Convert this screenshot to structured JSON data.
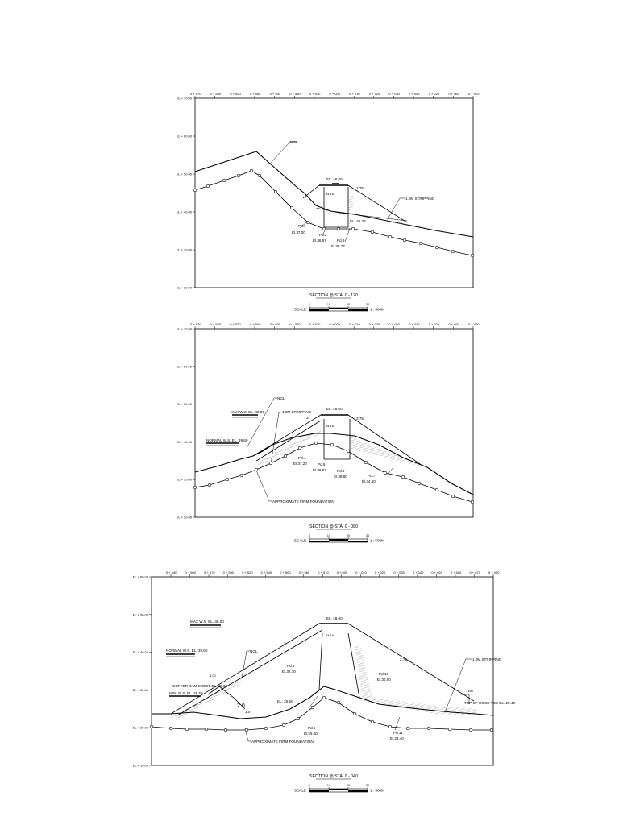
{
  "sections": [
    {
      "title": "SECTION @ STA. 0 - 120",
      "elevations": [
        "EL + 70.00",
        "EL + 60.00",
        "EL + 50.00",
        "EL + 40.00",
        "EL + 30.00",
        "EL + 20.00"
      ],
      "stations": [
        "0 + 570",
        "0 + 580",
        "0 + 520",
        "0 + 540",
        "0 + 500",
        "0 + 560",
        "0 + 510",
        "0 + 000",
        "0 + 010",
        "0 + 020",
        "0 + 030",
        "0 + 040",
        "0 + 020",
        "0 + 060",
        "0 + 070"
      ],
      "labels": {
        "ngl": "NGL",
        "crest": "EL. 48.00",
        "berm": "44.16",
        "slope": "2.75",
        "stripping": "1.0M STRIPPING",
        "el_3628": "EL. 36.28",
        "pd1": "Pd.1",
        "pd1_el": "El.37.20",
        "pd2": "Pd.2",
        "pd2_el": "El.36.57",
        "pd3": "Pd.3",
        "pd3_el": "El.39.72"
      },
      "scale": {
        "label": "SCALE",
        "ticks": [
          "0",
          "10",
          "20",
          "30"
        ],
        "ratio": "1 : 500M"
      }
    },
    {
      "title": "SECTION @ STA. 0 - 080",
      "elevations": [
        "EL + 70.00",
        "EL + 60.00",
        "EL + 50.00",
        "EL + 40.00",
        "EL + 30.00",
        "EL + 20.00"
      ],
      "stations": [
        "0 + 570",
        "0 + 580",
        "0 + 520",
        "0 + 540",
        "0 + 500",
        "0 + 560",
        "0 + 510",
        "0 + 000",
        "0 + 010",
        "0 + 020",
        "0 + 030",
        "0 + 040",
        "0 + 020",
        "0 + 060",
        "0 + 070"
      ],
      "labels": {
        "ngl": "NGL",
        "max_ws": "MAX W.S. EL. 48.00",
        "normal_ws": "NORMAL W.S. EL. 39.60",
        "stripping": "1.0M STRIPPING",
        "crest": "EL. 48.00",
        "berm": "44.16",
        "slope": "2.75",
        "slope_up": "3",
        "firm": "APPROXIMATE FIRM FOUNDATION",
        "pd4": "Pd.4",
        "pd4_el": "El.37.20",
        "pd5": "Pd.5",
        "pd5_el": "El.36.57",
        "pd6": "Pd.6",
        "pd6_el": "El.38.60",
        "pd7": "Pd.7",
        "pd7_el": "El.34.60"
      },
      "scale": {
        "label": "SCALE",
        "ticks": [
          "0",
          "10",
          "20",
          "30"
        ],
        "ratio": "1 : 500M"
      }
    },
    {
      "title": "SECTION @ STA. 0 - 040",
      "elevations": [
        "EL + 60.00",
        "EL + 50.00",
        "EL + 40.00",
        "EL + 30.00",
        "EL + 20.00",
        "EL + 10.00"
      ],
      "stations": [
        "0 + 540",
        "0 + 500",
        "0 + 570",
        "0 + 580",
        "0 + 520",
        "0 + 540",
        "0 + 500",
        "0 + 560",
        "0 + 510",
        "0 + 000",
        "0 + 010",
        "0 + 020",
        "0 + 030",
        "0 + 040",
        "0 + 020",
        "0 + 060",
        "0 + 070",
        "0 + 000"
      ],
      "labels": {
        "ngl": "NGL",
        "max_ws": "MAX W.S. EL. 48.00",
        "normal_ws": "NORMAL W.S. EL. 39.60",
        "coffer": "COFFER DAM CREST EL. 30.00",
        "min_ws": "MIN. W.S. EL. 28.50",
        "crest": "EL. 48.00",
        "berm": "44.16",
        "slope": "2.75",
        "slope_up": "3",
        "slope_coffer": "3.00",
        "slope_20": "2.0",
        "slope_10": "1.0",
        "el_2550": "EL. 25.50",
        "stripping": "1.0M STRIPPING",
        "toe": "TOP OF ROCK TOE EL. 25.40",
        "dim_150": "150",
        "firm": "APPROXIMATE FIRM FOUNDATION",
        "pd8": "Pd.8",
        "pd8_el": "El.32.70",
        "pd9": "Pd.9",
        "pd9_el": "El.25.50",
        "pd10": "Pd.10",
        "pd10_el": "El.30.00",
        "pd11": "Pd.11",
        "pd11_el": "El.24.40"
      },
      "scale": {
        "label": "SCALE",
        "ticks": [
          "0",
          "10",
          "20",
          "30"
        ],
        "ratio": "1 : 500M"
      }
    }
  ]
}
